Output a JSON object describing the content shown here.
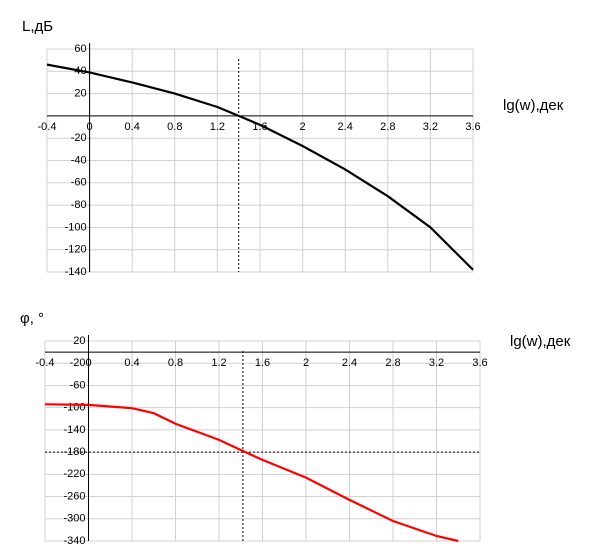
{
  "chart_data": [
    {
      "type": "line",
      "y_label": "L,дБ",
      "x_label": "lg(w),дек",
      "x": [
        -0.4,
        0,
        0.4,
        0.8,
        1.2,
        1.4,
        1.6,
        2,
        2.4,
        2.8,
        3.2,
        3.6
      ],
      "series": [
        {
          "color": "#000000",
          "values": [
            46,
            39,
            30,
            20,
            8,
            0,
            -8,
            -27,
            -48,
            -72,
            -100,
            -138
          ]
        }
      ],
      "xlim": [
        -0.4,
        3.6
      ],
      "xticks": [
        -0.4,
        0,
        0.4,
        0.8,
        1.2,
        1.6,
        2,
        2.4,
        2.8,
        3.2,
        3.6
      ],
      "ylim": [
        -140,
        60
      ],
      "yticks": [
        60,
        40,
        20,
        -20,
        -40,
        -60,
        -80,
        -100,
        -120,
        -140
      ],
      "vlines": [
        1.4
      ],
      "hlines": [],
      "grid": true
    },
    {
      "type": "line",
      "y_label": "φ, °",
      "x_label": "lg(w),дек",
      "x": [
        -0.4,
        0,
        0.4,
        0.6,
        0.8,
        1.2,
        1.42,
        1.6,
        2,
        2.4,
        2.8,
        3.2,
        3.4
      ],
      "series": [
        {
          "color": "#ff0000",
          "values": [
            -94,
            -95,
            -101,
            -110,
            -129,
            -158,
            -178,
            -194,
            -226,
            -266,
            -304,
            -331,
            -340
          ]
        }
      ],
      "xlim": [
        -0.4,
        3.6
      ],
      "xticks": [
        -0.4,
        0,
        0.4,
        0.8,
        1.2,
        1.6,
        2,
        2.4,
        2.8,
        3.2,
        3.6
      ],
      "ylim": [
        -340,
        20
      ],
      "yticks": [
        20,
        -20,
        -60,
        -100,
        -140,
        -180,
        -220,
        -260,
        -300,
        -340
      ],
      "vlines": [
        1.42
      ],
      "hlines": [
        -180
      ],
      "grid": true
    }
  ]
}
